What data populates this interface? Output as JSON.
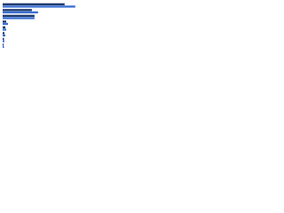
{
  "chart_data": {
    "type": "bar",
    "orientation": "horizontal",
    "categories": [
      null,
      null,
      null,
      null,
      null,
      null,
      null,
      null
    ],
    "series": [
      {
        "color": "#1f3a6e",
        "values": [
          70,
          33,
          36,
          4,
          3,
          2,
          1.5,
          1
        ]
      },
      {
        "color": "#3b6fd0",
        "values": [
          82,
          40,
          36,
          6,
          4,
          3,
          2,
          1.5
        ]
      }
    ]
  }
}
